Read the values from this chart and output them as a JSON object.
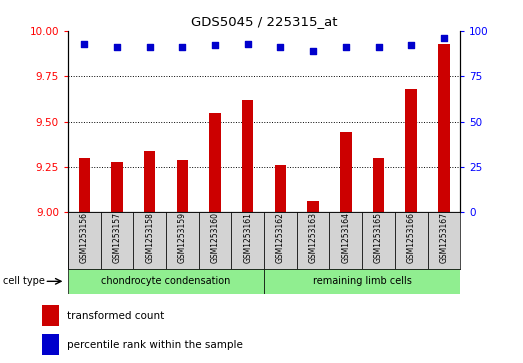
{
  "title": "GDS5045 / 225315_at",
  "samples": [
    "GSM1253156",
    "GSM1253157",
    "GSM1253158",
    "GSM1253159",
    "GSM1253160",
    "GSM1253161",
    "GSM1253162",
    "GSM1253163",
    "GSM1253164",
    "GSM1253165",
    "GSM1253166",
    "GSM1253167"
  ],
  "transformed_count": [
    9.3,
    9.28,
    9.34,
    9.29,
    9.55,
    9.62,
    9.26,
    9.06,
    9.44,
    9.3,
    9.68,
    9.93
  ],
  "percentile_rank": [
    93,
    91,
    91,
    91,
    92,
    93,
    91,
    89,
    91,
    91,
    92,
    96
  ],
  "ylim_left": [
    9.0,
    10.0
  ],
  "ylim_right": [
    0,
    100
  ],
  "yticks_left": [
    9.0,
    9.25,
    9.5,
    9.75,
    10.0
  ],
  "yticks_right": [
    0,
    25,
    50,
    75,
    100
  ],
  "bar_color": "#cc0000",
  "dot_color": "#0000cc",
  "group1_label": "chondrocyte condensation",
  "group2_label": "remaining limb cells",
  "group1_count": 6,
  "group2_count": 6,
  "cell_type_label": "cell type",
  "legend_bar": "transformed count",
  "legend_dot": "percentile rank within the sample",
  "bg_color": "#d3d3d3",
  "group1_color": "#90ee90",
  "group2_color": "#90ee90",
  "bar_width": 0.35,
  "fig_width": 5.23,
  "fig_height": 3.63,
  "fig_dpi": 100
}
